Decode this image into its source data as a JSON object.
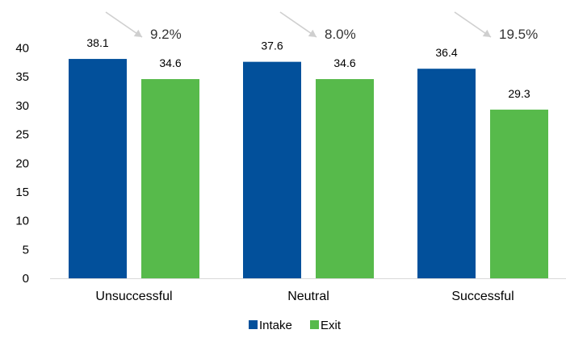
{
  "chart_data": {
    "type": "bar",
    "categories": [
      "Unsuccessful",
      "Neutral",
      "Successful"
    ],
    "series": [
      {
        "name": "Intake",
        "values": [
          38.1,
          37.6,
          36.4
        ]
      },
      {
        "name": "Exit",
        "values": [
          34.6,
          34.6,
          29.3
        ]
      }
    ],
    "data_labels": [
      [
        "38.1",
        "37.6",
        "36.4"
      ],
      [
        "34.6",
        "34.6",
        "29.3"
      ]
    ],
    "annotations": [
      "9.2%",
      "8.0%",
      "19.5%"
    ],
    "ylim": [
      0,
      40
    ],
    "y_ticks": [
      0,
      5,
      10,
      15,
      20,
      25,
      30,
      35,
      40
    ],
    "y_tick_labels": [
      "0",
      "5",
      "10",
      "15",
      "20",
      "25",
      "30",
      "35",
      "40"
    ],
    "grid": false,
    "legend_position": "bottom",
    "colors": {
      "intake": "#02509b",
      "exit": "#57ba4b",
      "arrow": "#cfcfcf",
      "axis": "#d9d9d9",
      "text": "#000000"
    }
  }
}
